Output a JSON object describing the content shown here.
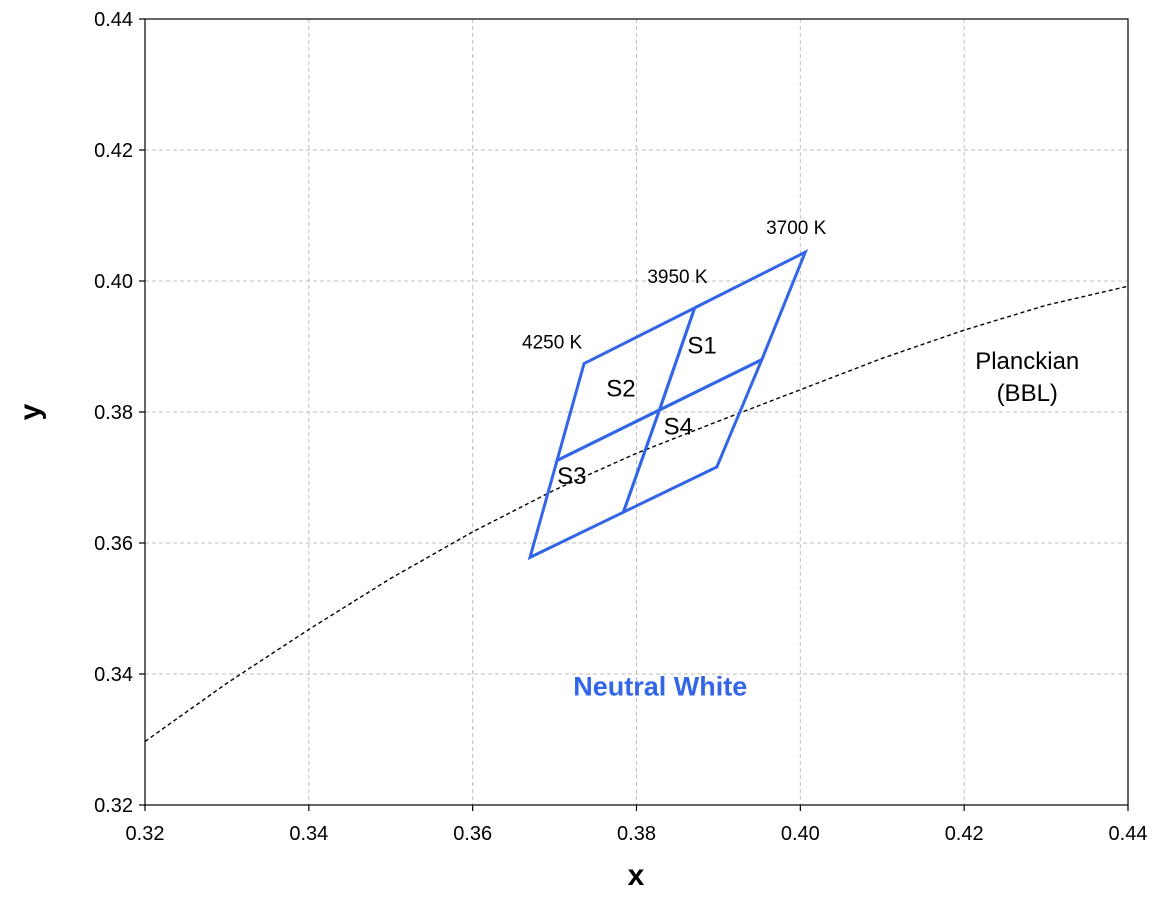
{
  "chart_data": {
    "type": "line",
    "title": "",
    "xlabel": "x",
    "ylabel": "y",
    "xlim": [
      0.32,
      0.44
    ],
    "ylim": [
      0.32,
      0.44
    ],
    "x_ticks": [
      "0.32",
      "0.34",
      "0.36",
      "0.38",
      "0.40",
      "0.42",
      "0.44"
    ],
    "y_ticks": [
      "0.32",
      "0.34",
      "0.36",
      "0.38",
      "0.40",
      "0.42",
      "0.44"
    ],
    "grid": true,
    "legend": "none",
    "colors": {
      "quadrangle": "#3366e6",
      "planckian": "#000000",
      "grid": "#bfbfbf"
    },
    "series": [
      {
        "name": "Planckian (BBL)",
        "style": "dashed",
        "points": [
          [
            0.32,
            0.3297
          ],
          [
            0.33,
            0.3386
          ],
          [
            0.34,
            0.3468
          ],
          [
            0.35,
            0.3546
          ],
          [
            0.36,
            0.3617
          ],
          [
            0.37,
            0.3681
          ],
          [
            0.38,
            0.3737
          ],
          [
            0.39,
            0.3786
          ],
          [
            0.4,
            0.3834
          ],
          [
            0.41,
            0.3882
          ],
          [
            0.42,
            0.3925
          ],
          [
            0.43,
            0.3963
          ],
          [
            0.44,
            0.3992
          ]
        ]
      }
    ],
    "quadrangles": [
      {
        "name": "S1",
        "corners": [
          [
            0.3871,
            0.3959
          ],
          [
            0.4006,
            0.4044
          ],
          [
            0.3953,
            0.388
          ],
          [
            0.3828,
            0.3803
          ]
        ]
      },
      {
        "name": "S2",
        "corners": [
          [
            0.3736,
            0.3874
          ],
          [
            0.3871,
            0.3959
          ],
          [
            0.3828,
            0.3803
          ],
          [
            0.3703,
            0.3726
          ]
        ]
      },
      {
        "name": "S3",
        "corners": [
          [
            0.3703,
            0.3726
          ],
          [
            0.3828,
            0.3803
          ],
          [
            0.3784,
            0.3647
          ],
          [
            0.367,
            0.3578
          ]
        ]
      },
      {
        "name": "S4",
        "corners": [
          [
            0.3828,
            0.3803
          ],
          [
            0.3953,
            0.388
          ],
          [
            0.3898,
            0.3716
          ],
          [
            0.3784,
            0.3647
          ]
        ]
      }
    ],
    "annotations": {
      "cct": [
        {
          "text": "3700 K",
          "x": 0.3995,
          "y": 0.4072
        },
        {
          "text": "3950 K",
          "x": 0.385,
          "y": 0.3997
        },
        {
          "text": "4250 K",
          "x": 0.3697,
          "y": 0.3897
        }
      ],
      "regions": [
        {
          "text": "S1",
          "x": 0.388,
          "y": 0.3889
        },
        {
          "text": "S2",
          "x": 0.3781,
          "y": 0.3824
        },
        {
          "text": "S3",
          "x": 0.3721,
          "y": 0.369
        },
        {
          "text": "S4",
          "x": 0.3851,
          "y": 0.3766
        }
      ],
      "curve_label": {
        "lines": [
          "Planckian",
          "(BBL)"
        ],
        "x": 0.4277,
        "y": 0.3866
      },
      "group_label": {
        "text": "Neutral White",
        "x": 0.3829,
        "y": 0.3367
      }
    }
  }
}
